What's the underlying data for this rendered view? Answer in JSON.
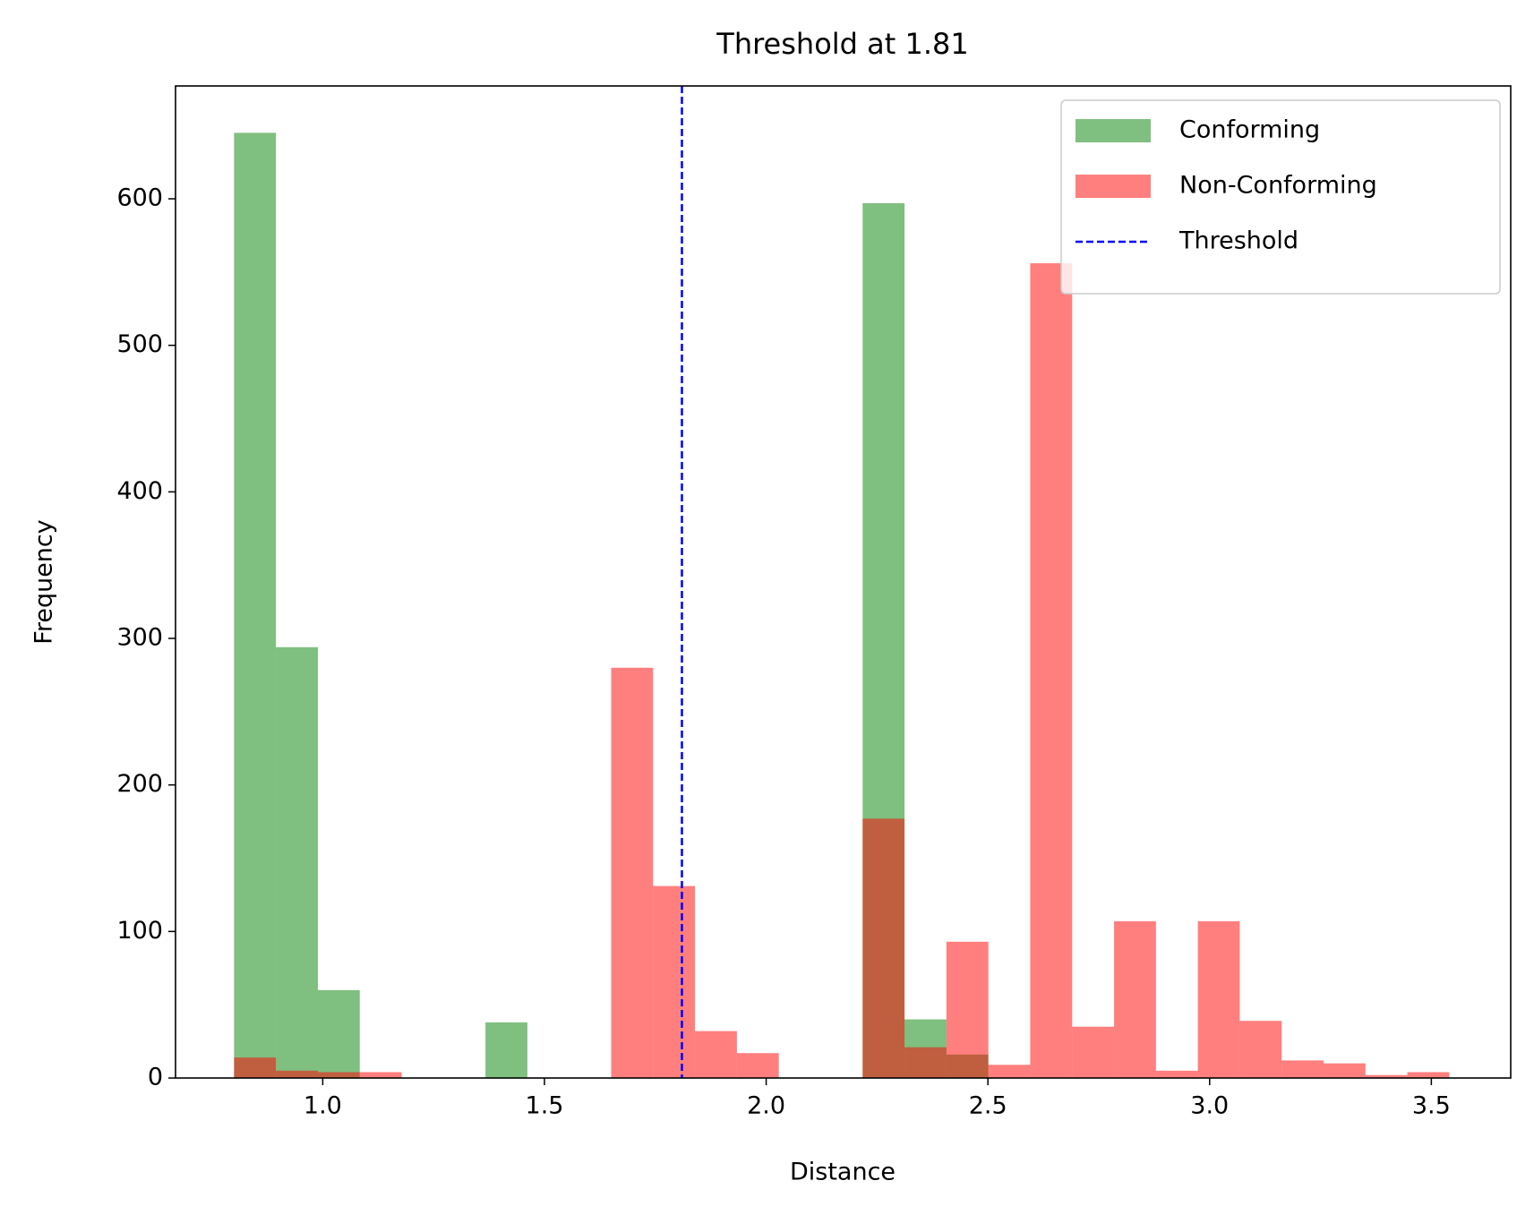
{
  "chart_data": {
    "type": "histogram",
    "title": "Threshold at 1.81",
    "x_label": "Distance",
    "y_label": "Frequency",
    "bins": [
      0.8,
      0.8945,
      0.989,
      1.0835,
      1.178,
      1.2725,
      1.367,
      1.4615,
      1.556,
      1.6505,
      1.745,
      1.8395,
      1.934,
      2.0285,
      2.123,
      2.2175,
      2.312,
      2.4065,
      2.501,
      2.5955,
      2.69,
      2.7845,
      2.879,
      2.9735,
      3.068,
      3.1625,
      3.257,
      3.3515,
      3.446,
      3.5405
    ],
    "series": [
      {
        "name": "Conforming",
        "color": "#008000",
        "opacity": 0.5,
        "values": [
          645,
          294,
          60,
          0,
          0,
          0,
          38,
          0,
          0,
          0,
          0,
          0,
          0,
          0,
          0,
          597,
          40,
          16,
          0,
          0,
          0,
          0,
          0,
          0,
          0,
          0,
          0,
          0,
          0
        ]
      },
      {
        "name": "Non-Conforming",
        "color": "#ff0000",
        "opacity": 0.5,
        "values": [
          14,
          5,
          4,
          4,
          0,
          0,
          0,
          0,
          0,
          280,
          131,
          32,
          17,
          0,
          0,
          177,
          21,
          93,
          9,
          556,
          35,
          107,
          5,
          107,
          39,
          12,
          10,
          2,
          4
        ]
      }
    ],
    "threshold": {
      "name": "Threshold",
      "value": 1.81,
      "color": "#0000ff"
    },
    "xlim": [
      0.668,
      3.679
    ],
    "ylim": [
      0,
      677
    ],
    "xticks": [
      {
        "value": 1,
        "label": "1.0"
      },
      1.5,
      {
        "value": 2,
        "label": "2.0"
      },
      2.5,
      {
        "value": 3,
        "label": "3.0"
      },
      3.5
    ],
    "yticks": [
      0,
      100,
      200,
      300,
      400,
      500,
      600
    ],
    "legend": "upper right"
  }
}
